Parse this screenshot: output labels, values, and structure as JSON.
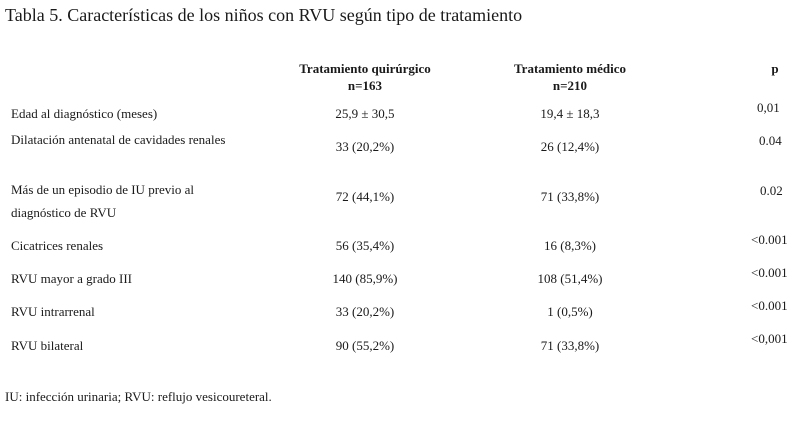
{
  "title": "Tabla 5. Características de los niños con RVU según tipo de tratamiento",
  "columns": {
    "surgical": {
      "name": "Tratamiento quirúrgico",
      "n": "n=163"
    },
    "medical": {
      "name": "Tratamiento médico",
      "n": "n=210"
    },
    "p": {
      "name": "p"
    }
  },
  "rows": [
    {
      "label": "Edad al diagnóstico (meses)",
      "surgical": "25,9 ± 30,5",
      "medical": "19,4 ± 18,3",
      "p": "0,01"
    },
    {
      "label": "Dilatación antenatal de cavidades renales",
      "surgical": "33 (20,2%)",
      "medical": "26 (12,4%)",
      "p": "0.04"
    },
    {
      "label": "Más de un episodio de IU previo al diagnóstico de RVU",
      "surgical": "72 (44,1%)",
      "medical": "71 (33,8%)",
      "p": "0.02"
    },
    {
      "label": "Cicatrices renales",
      "surgical": "56 (35,4%)",
      "medical": "16 (8,3%)",
      "p": "<0.001"
    },
    {
      "label": "RVU mayor a grado III",
      "surgical": "140 (85,9%)",
      "medical": "108 (51,4%)",
      "p": "<0.001"
    },
    {
      "label": "RVU intrarrenal",
      "surgical": "33 (20,2%)",
      "medical": "1 (0,5%)",
      "p": "<0.001"
    },
    {
      "label": "RVU bilateral",
      "surgical": "90 (55,2%)",
      "medical": "71 (33,8%)",
      "p": "<0,001"
    }
  ],
  "footnote": "IU: infección urinaria; RVU: reflujo vesicoureteral."
}
